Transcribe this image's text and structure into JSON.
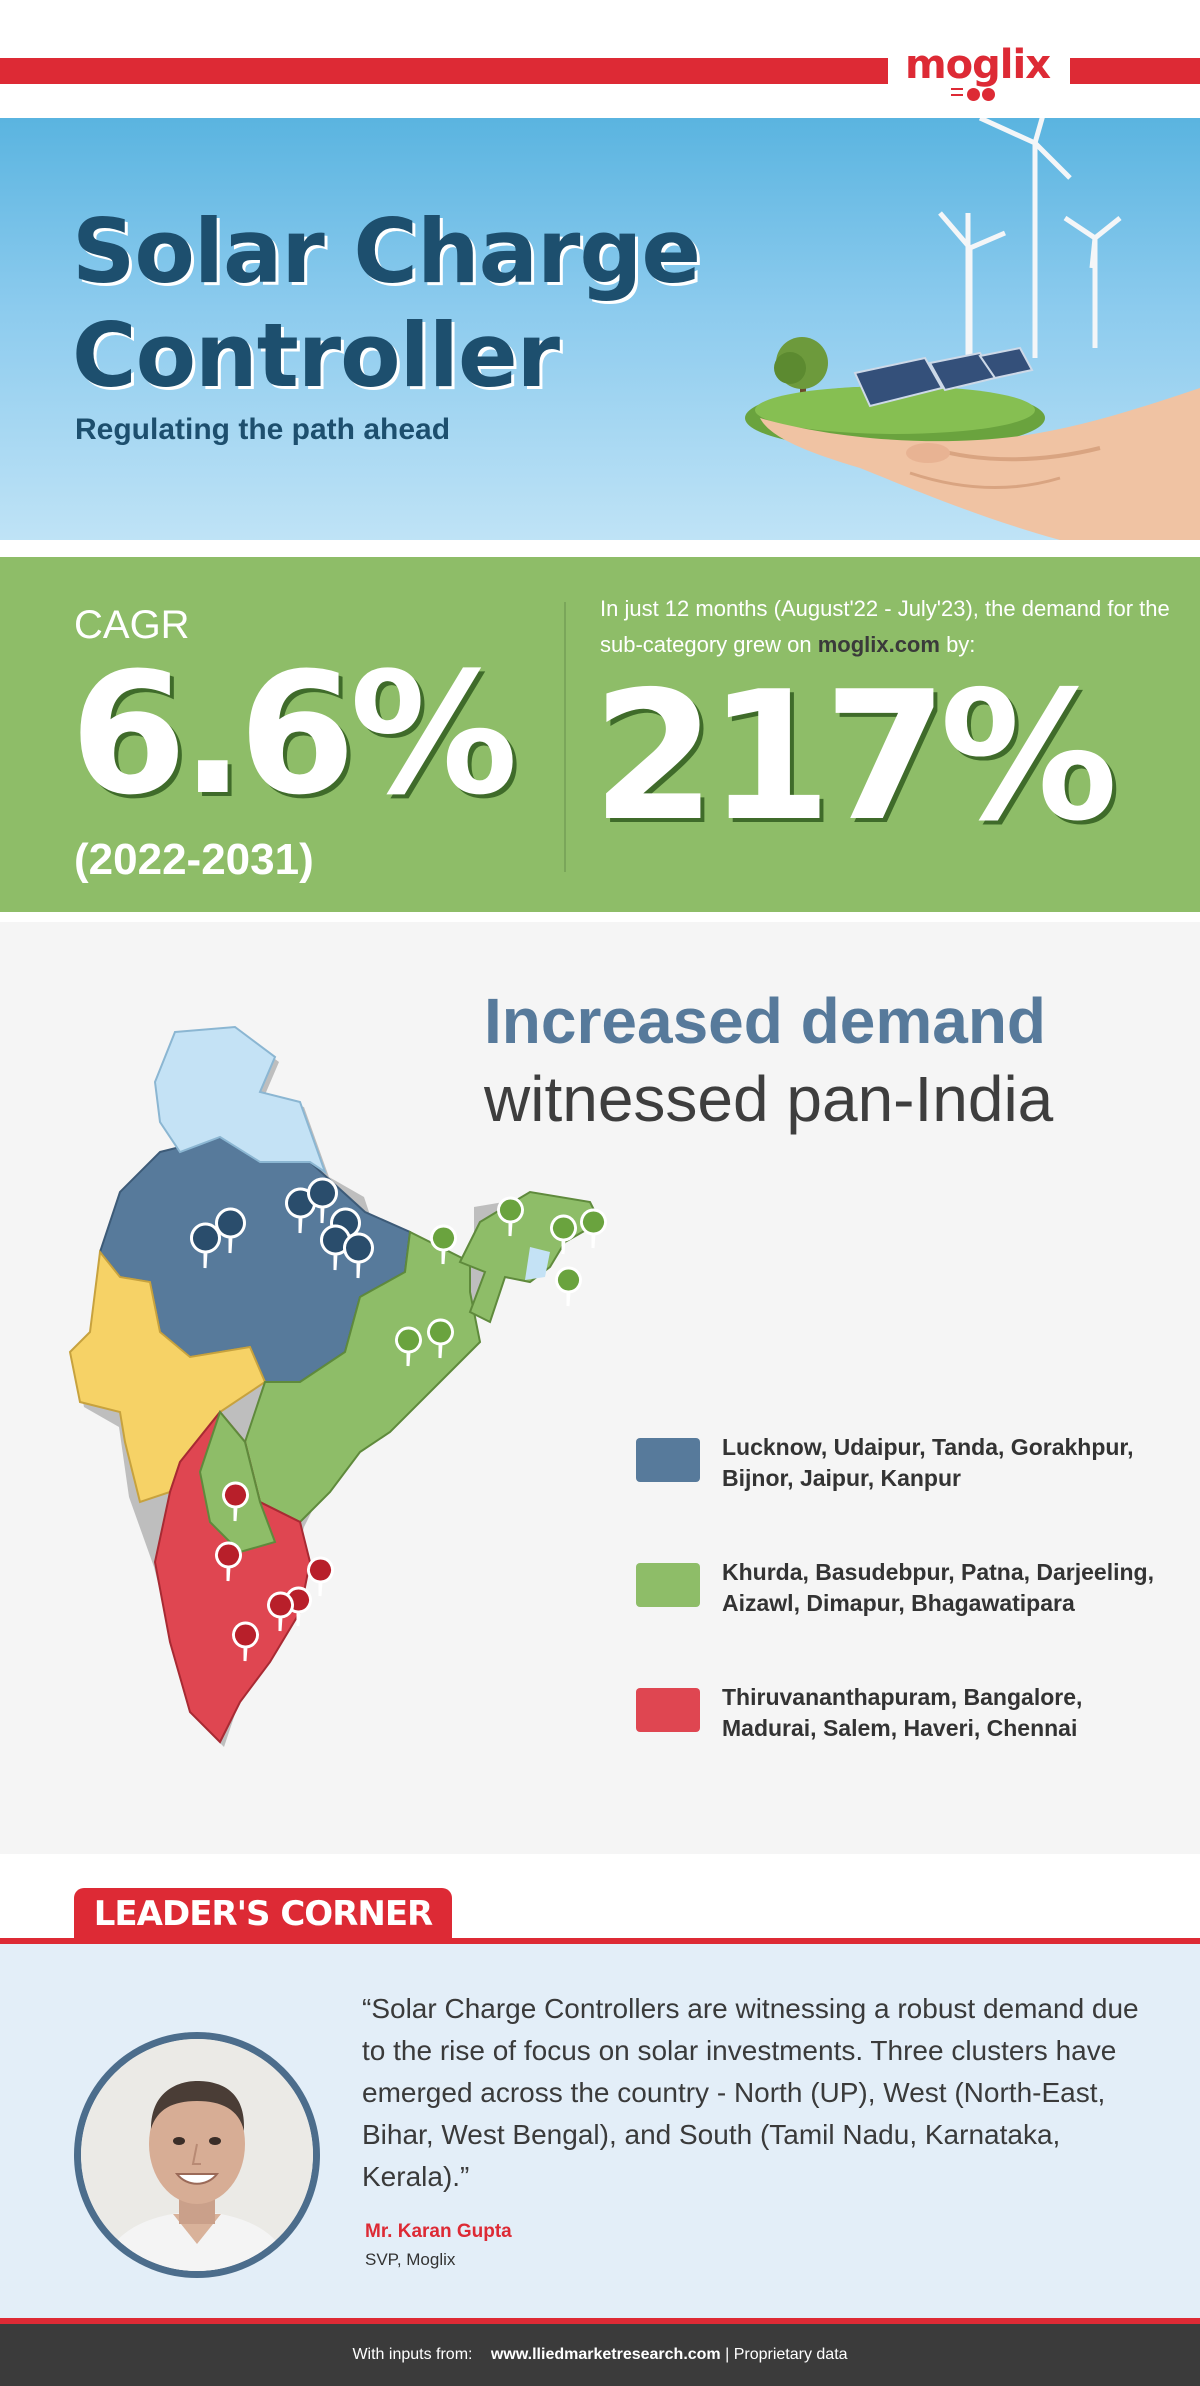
{
  "brand": {
    "logo_text": "moglix"
  },
  "hero": {
    "title_line1": "Solar Charge",
    "title_line2": "Controller",
    "subtitle": "Regulating the path ahead"
  },
  "stats": {
    "cagr_label": "CAGR",
    "cagr_value": "6.6%",
    "cagr_period": "(2022-2031)",
    "growth_text_pre": "In just 12 months (August'22 - July'23), the demand for the sub-category grew on",
    "growth_text_site": "moglix.com",
    "growth_text_post": "by:",
    "growth_value": "217%"
  },
  "demand": {
    "heading_line1": "Increased demand",
    "heading_line2": "witnessed pan-India",
    "legend": [
      {
        "color": "#577a9b",
        "text": "Lucknow, Udaipur, Tanda, Gorakhpur, Bijnor, Jaipur, Kanpur"
      },
      {
        "color": "#8ebd68",
        "text": "Khurda, Basudebpur, Patna, Darjeeling, Aizawl, Dimapur, Bhagawatipara"
      },
      {
        "color": "#df4651",
        "text": "Thiruvananthapuram, Bangalore, Madurai, Salem, Haveri, Chennai"
      }
    ]
  },
  "leader": {
    "section_title": "LEADER'S CORNER",
    "quote": "“Solar Charge Controllers are witnessing a robust demand due to the rise of focus on solar investments. Three clusters have emerged across the country - North (UP), West (North-East, Bihar, West Bengal), and South (Tamil Nadu, Karnataka, Kerala).”",
    "name": "Mr. Karan Gupta",
    "role": "SVP, Moglix"
  },
  "footer": {
    "prefix": "With inputs from:",
    "site": "www.lliedmarketresearch.com",
    "suffix": "| Proprietary data"
  },
  "colors": {
    "accent_red": "#dd2a35",
    "stats_green": "#8ebd68",
    "north_blue": "#577a9b",
    "south_red": "#df4651",
    "west_yellow": "#f6d266",
    "light_blue": "#c4e2f5"
  }
}
